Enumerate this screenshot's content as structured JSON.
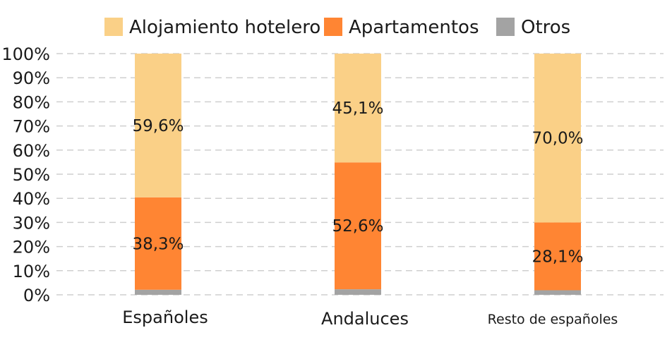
{
  "chart_data": {
    "type": "bar",
    "stacked": true,
    "grid": true,
    "legend_position": "top",
    "categories": [
      "Españoles",
      "Andaluces",
      "Resto de españoles"
    ],
    "ylim": [
      0,
      100
    ],
    "yticks": [
      "0%",
      "10%",
      "20%",
      "30%",
      "40%",
      "50%",
      "60%",
      "70%",
      "80%",
      "90%",
      "100%"
    ],
    "series": [
      {
        "name": "Otros",
        "color": "#a3a3a3",
        "values": [
          2.1,
          2.3,
          1.9
        ],
        "labels": [
          "",
          "",
          ""
        ]
      },
      {
        "name": "Apartamentos",
        "color": "#ff8533",
        "values": [
          38.3,
          52.6,
          28.1
        ],
        "labels": [
          "38,3%",
          "52,6%",
          "28,1%"
        ]
      },
      {
        "name": "Alojamiento hotelero",
        "color": "#fad087",
        "values": [
          59.6,
          45.1,
          70.0
        ],
        "labels": [
          "59,6%",
          "45,1%",
          "70,0%"
        ]
      }
    ],
    "legend_order": [
      "Alojamiento hotelero",
      "Apartamentos",
      "Otros"
    ]
  }
}
